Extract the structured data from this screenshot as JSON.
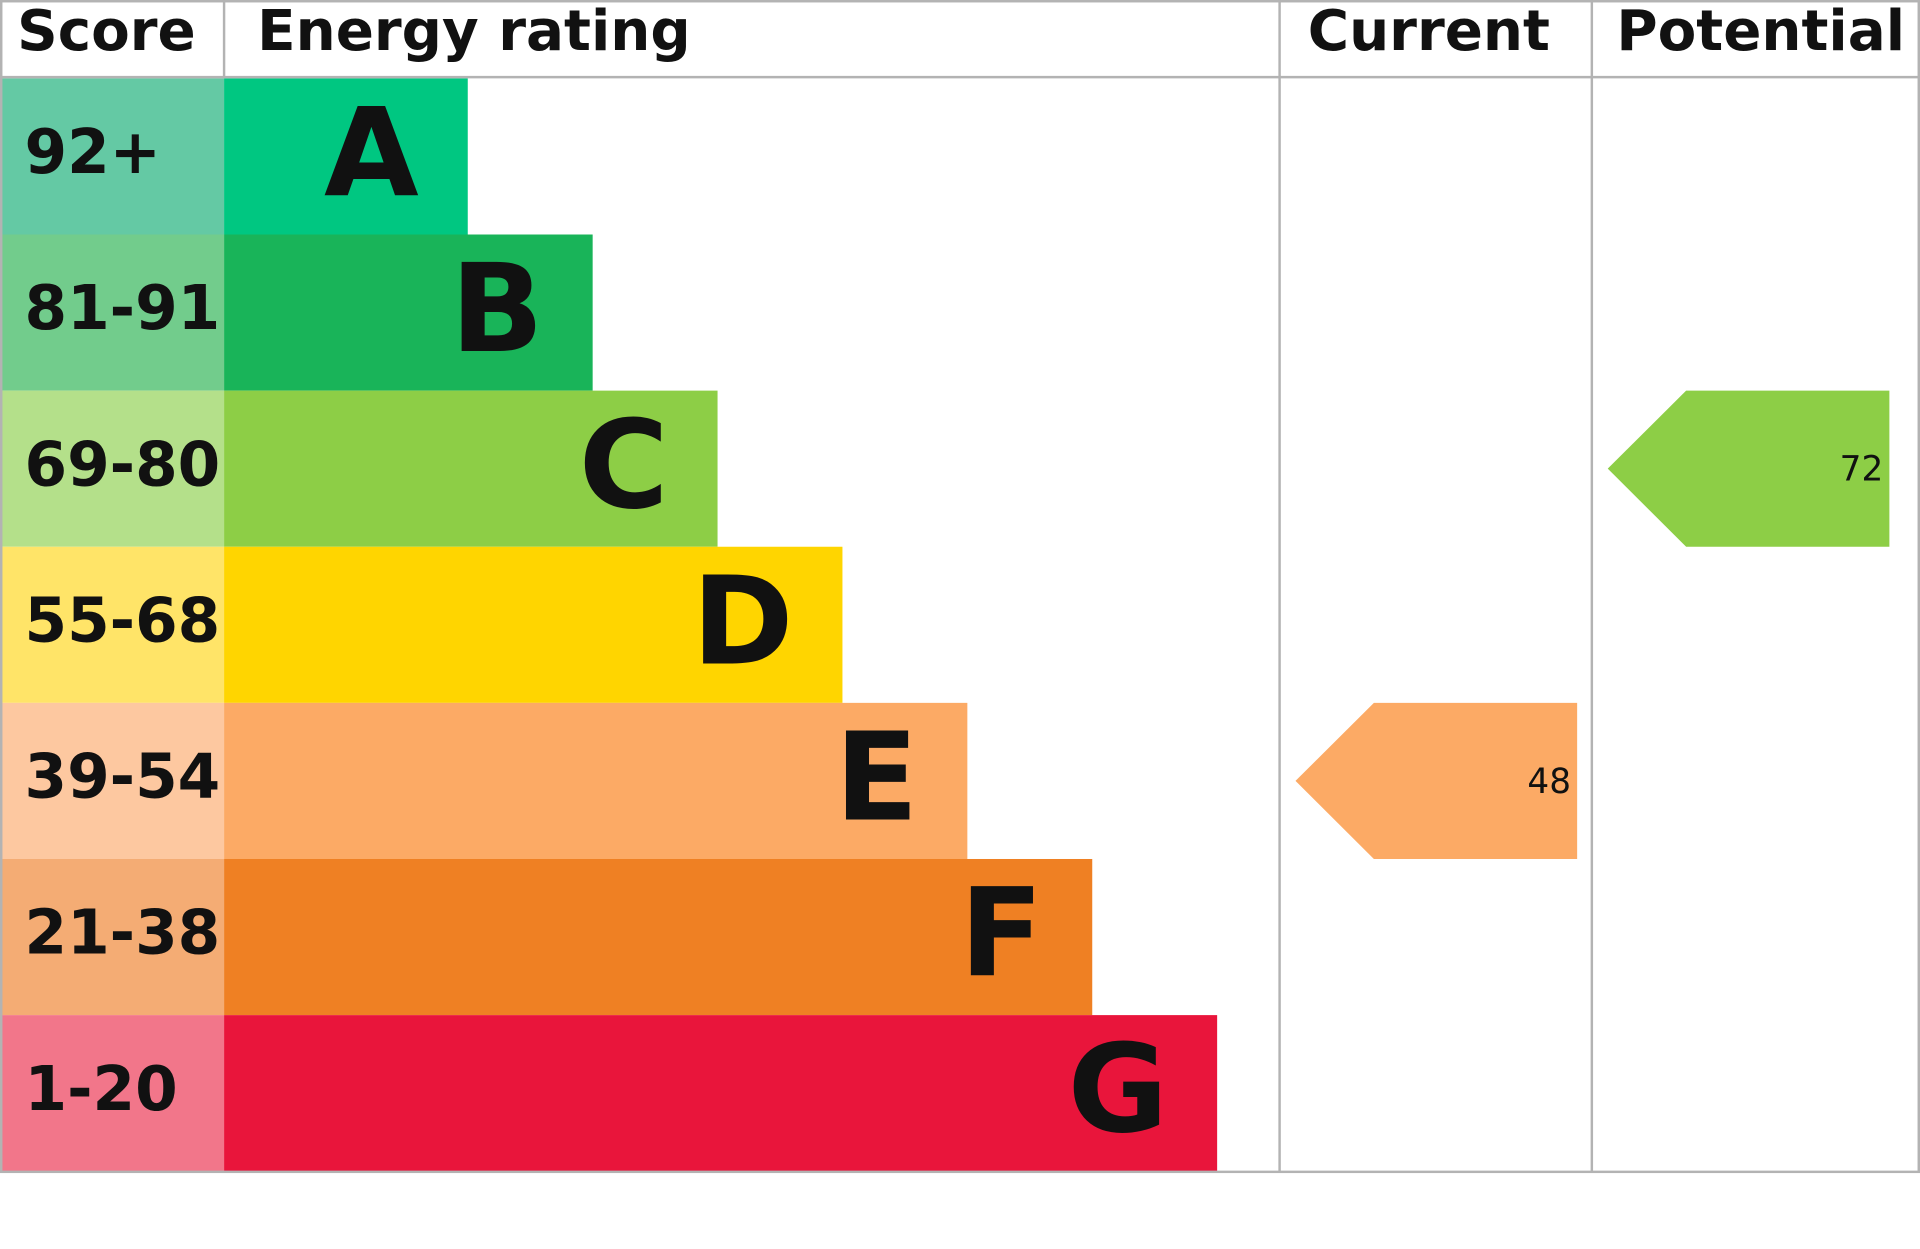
{
  "headers": {
    "score": "Score",
    "rating": "Energy rating",
    "current": "Current",
    "potential": "Potential"
  },
  "bands": [
    {
      "score": "92+",
      "letter": "A",
      "color": "#00c781",
      "score_color": "#64c9a4"
    },
    {
      "score": "81-91",
      "letter": "B",
      "color": "#19b459",
      "score_color": "#72cc8c"
    },
    {
      "score": "69-80",
      "letter": "C",
      "color": "#8dce46",
      "score_color": "#b4e08a"
    },
    {
      "score": "55-68",
      "letter": "D",
      "color": "#ffd500",
      "score_color": "#ffe468"
    },
    {
      "score": "39-54",
      "letter": "E",
      "color": "#fcaa65",
      "score_color": "#fdc8a0"
    },
    {
      "score": "21-38",
      "letter": "F",
      "color": "#ef8023",
      "score_color": "#f4ac74"
    },
    {
      "score": "1-20",
      "letter": "G",
      "color": "#e9153b",
      "score_color": "#f2768a"
    }
  ],
  "current": {
    "value": 48,
    "color": "#fcaa65"
  },
  "potential": {
    "value": 72,
    "color": "#8dce46"
  }
}
